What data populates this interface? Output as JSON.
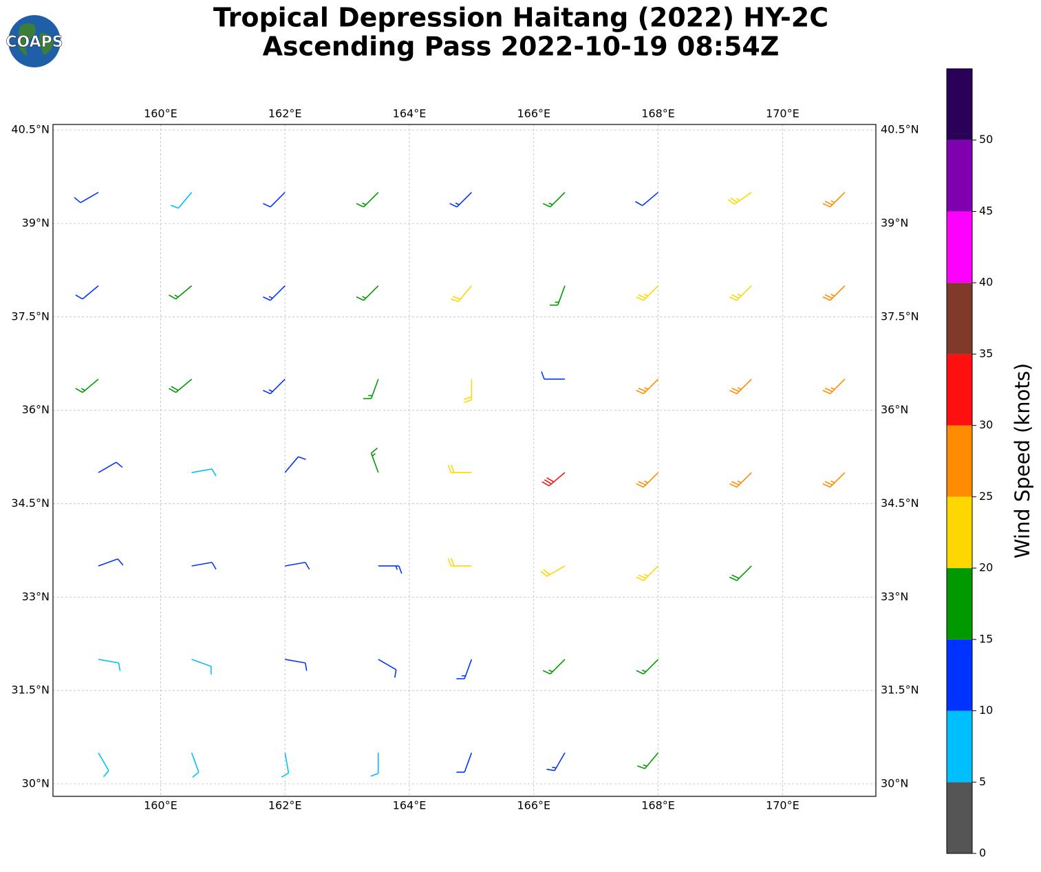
{
  "logo_text": "COAPS",
  "chart_data": {
    "type": "barbs",
    "title": "Tropical Depression Haitang (2022) HY-2C",
    "subtitle": "Ascending Pass 2022-10-19 08:54Z",
    "xlim": [
      158.27,
      171.5
    ],
    "ylim": [
      29.8,
      40.59
    ],
    "xticks": [
      {
        "value": 160,
        "label": "160°E"
      },
      {
        "value": 162,
        "label": "162°E"
      },
      {
        "value": 164,
        "label": "164°E"
      },
      {
        "value": 166,
        "label": "166°E"
      },
      {
        "value": 168,
        "label": "168°E"
      },
      {
        "value": 170,
        "label": "170°E"
      }
    ],
    "yticks": [
      {
        "value": 30,
        "label": "30°N"
      },
      {
        "value": 31.5,
        "label": "31.5°N"
      },
      {
        "value": 33,
        "label": "33°N"
      },
      {
        "value": 34.5,
        "label": "34.5°N"
      },
      {
        "value": 36,
        "label": "36°N"
      },
      {
        "value": 37.5,
        "label": "37.5°N"
      },
      {
        "value": 39,
        "label": "39°N"
      },
      {
        "value": 40.5,
        "label": "40.5°N"
      }
    ],
    "grid": true,
    "barbs": {
      "lon": [
        159,
        160.5,
        162,
        163.5,
        165,
        166.5,
        168,
        169.5,
        171,
        159,
        160.5,
        162,
        163.5,
        165,
        166.5,
        168,
        169.5,
        171,
        159,
        160.5,
        162,
        163.5,
        165,
        166.5,
        168,
        169.5,
        171,
        159,
        160.5,
        162,
        163.5,
        165,
        166.5,
        168,
        169.5,
        171,
        159,
        160.5,
        162,
        163.5,
        165,
        166.5,
        168,
        169.5,
        159,
        160.5,
        162,
        163.5,
        165,
        166.5,
        168,
        159,
        160.5,
        162,
        163.5,
        165,
        166.5,
        168
      ],
      "lat": [
        39.5,
        39.5,
        39.5,
        39.5,
        39.5,
        39.5,
        39.5,
        39.5,
        39.5,
        38,
        38,
        38,
        38,
        38,
        38,
        38,
        38,
        38,
        36.5,
        36.5,
        36.5,
        36.5,
        36.5,
        36.5,
        36.5,
        36.5,
        36.5,
        35,
        35,
        35,
        35,
        35,
        35,
        35,
        35,
        35,
        33.5,
        33.5,
        33.5,
        33.5,
        33.5,
        33.5,
        33.5,
        33.5,
        32,
        32,
        32,
        32,
        32,
        32,
        32,
        30.5,
        30.5,
        30.5,
        30.5,
        30.5,
        30.5,
        30.5
      ],
      "speed": [
        11,
        8,
        12,
        16,
        13,
        17,
        12,
        24,
        26,
        12,
        17,
        13,
        17,
        22,
        17,
        23,
        24,
        27,
        17,
        18,
        13,
        16,
        20,
        12,
        26,
        27,
        27,
        10,
        8,
        12,
        16,
        22,
        31,
        27,
        26,
        25,
        12,
        11,
        12,
        14,
        22,
        22,
        23,
        19,
        8,
        8,
        12,
        12,
        13,
        16,
        17,
        8,
        8,
        8,
        9,
        12,
        13,
        17
      ],
      "direction": [
        240,
        220,
        225,
        225,
        225,
        225,
        230,
        235,
        225,
        230,
        230,
        225,
        225,
        220,
        200,
        225,
        225,
        225,
        230,
        230,
        225,
        200,
        180,
        270,
        225,
        225,
        225,
        60,
        80,
        40,
        340,
        270,
        230,
        225,
        225,
        225,
        70,
        80,
        80,
        90,
        270,
        240,
        225,
        225,
        100,
        110,
        100,
        120,
        200,
        225,
        225,
        150,
        160,
        170,
        180,
        200,
        210,
        220
      ]
    },
    "colorbar": {
      "label": "Wind Speed (knots)",
      "bounds": [
        0,
        5,
        10,
        15,
        20,
        25,
        30,
        35,
        40,
        45,
        50,
        55
      ],
      "colors": [
        "#555555",
        "#00bfff",
        "#0033ff",
        "#009900",
        "#ffd700",
        "#ff8c00",
        "#ff1010",
        "#7f3a2a",
        "#ff00ff",
        "#8000b0",
        "#2b0059"
      ],
      "ticks": [
        0,
        5,
        10,
        15,
        20,
        25,
        30,
        35,
        40,
        45,
        50
      ]
    }
  }
}
